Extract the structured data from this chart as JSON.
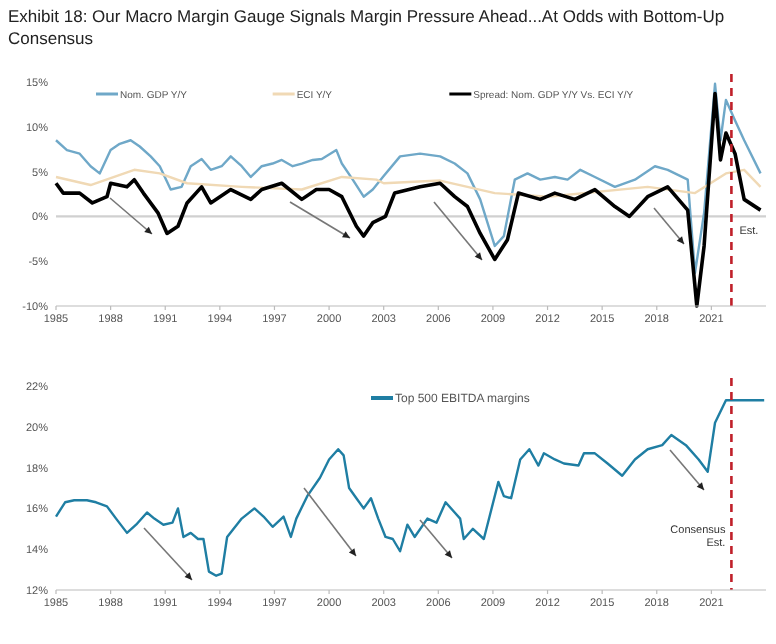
{
  "chart_data": [
    {
      "type": "line",
      "title": "Exhibit 18:  Our Macro Margin Gauge Signals Margin Pressure Ahead...At Odds with Bottom-Up Consensus",
      "xlim": [
        1985,
        2024
      ],
      "xticks": [
        1985,
        1988,
        1991,
        1994,
        1997,
        2000,
        2003,
        2006,
        2009,
        2012,
        2015,
        2018,
        2021
      ],
      "ylim": [
        -10,
        15
      ],
      "yticks": [
        {
          "value": -10,
          "label": "-10%"
        },
        {
          "value": -5,
          "label": "-5%"
        },
        {
          "value": 0,
          "label": "0%"
        },
        {
          "value": 5,
          "label": "5%"
        },
        {
          "value": 10,
          "label": "10%"
        },
        {
          "value": 15,
          "label": "15%"
        }
      ],
      "grid": false,
      "legend": "top",
      "marker": "none",
      "series": [
        {
          "name": "Nom. GDP Y/Y",
          "color": "#6fa8c8",
          "x": [
            1985,
            1985.6,
            1986.3,
            1986.9,
            1987.4,
            1988,
            1988.5,
            1989.1,
            1989.6,
            1990.2,
            1990.7,
            1991.3,
            1991.9,
            1992.4,
            1993,
            1993.5,
            1994.1,
            1994.6,
            1995.2,
            1995.7,
            1996.3,
            1996.9,
            1997.4,
            1998,
            1998.5,
            1999.1,
            1999.6,
            2000.4,
            2000.7,
            2001.3,
            2001.9,
            2002.4,
            2003,
            2003.9,
            2005,
            2006.1,
            2006.9,
            2007.6,
            2008.3,
            2009.1,
            2009.6,
            2010.2,
            2010.9,
            2011.6,
            2012.4,
            2013.1,
            2013.8,
            2014.6,
            2015.7,
            2016.8,
            2017.9,
            2018.6,
            2019.7,
            2020.1,
            2020.6,
            2021.2,
            2021.5,
            2021.8,
            2022.3,
            2022.8,
            2023.7
          ],
          "values": [
            8.5,
            7.4,
            7,
            5.6,
            4.8,
            7.4,
            8.1,
            8.5,
            7.8,
            6.7,
            5.6,
            3,
            3.3,
            5.6,
            6.4,
            5.2,
            5.6,
            6.7,
            5.6,
            4.4,
            5.6,
            5.9,
            6.3,
            5.6,
            5.9,
            6.3,
            6.4,
            7.4,
            5.9,
            4.1,
            2.2,
            3,
            4.5,
            6.7,
            7,
            6.7,
            5.9,
            4.8,
            1.9,
            -3.3,
            -2.2,
            4.1,
            4.8,
            4.1,
            4.4,
            4.1,
            5.2,
            4.4,
            3.3,
            4.1,
            5.6,
            5.2,
            4.1,
            -6.3,
            0.4,
            14.8,
            8.5,
            13,
            10.7,
            8.5,
            4.8
          ]
        },
        {
          "name": "ECI Y/Y",
          "color": "#f0d9b5",
          "x": [
            1985,
            1986.9,
            1989.3,
            1990.7,
            1992.2,
            1995.2,
            1998.5,
            2000.7,
            2002.6,
            2003,
            2006.1,
            2009.1,
            2012,
            2017.5,
            2020.1,
            2021.8,
            2022.8,
            2023.7
          ],
          "values": [
            4.4,
            3.5,
            5.2,
            4.8,
            3.7,
            3.3,
            3,
            4.4,
            4.1,
            3.7,
            4,
            2.6,
            2.2,
            3.3,
            2.6,
            4.8,
            5.2,
            3.3
          ]
        },
        {
          "name": "Spread: Nom. GDP Y/Y Vs. ECI Y/Y",
          "color": "#000000",
          "x": [
            1985,
            1985.4,
            1986.3,
            1987,
            1987.8,
            1988,
            1988.9,
            1989.3,
            1989.8,
            1990.6,
            1991.1,
            1991.7,
            1992.2,
            1993,
            1993.5,
            1994.6,
            1995.7,
            1996.3,
            1997.4,
            1998.5,
            1999.3,
            2000,
            2000.7,
            2001.5,
            2001.9,
            2002.4,
            2003.1,
            2003.6,
            2005,
            2006.1,
            2006.9,
            2007.6,
            2008.3,
            2009.1,
            2009.8,
            2010.4,
            2011.6,
            2012.4,
            2013.5,
            2014.6,
            2015.7,
            2016.5,
            2017.5,
            2018.6,
            2019.7,
            2020.2,
            2020.6,
            2021.2,
            2021.5,
            2021.8,
            2022.3,
            2022.8,
            2023.7
          ],
          "values": [
            3.7,
            2.6,
            2.6,
            1.5,
            2.2,
            3.7,
            3.3,
            4.1,
            2.6,
            0.4,
            -1.9,
            -1.1,
            1.5,
            3.3,
            1.5,
            3,
            1.9,
            3,
            3.7,
            1.9,
            3,
            3,
            2.2,
            -1.1,
            -2.2,
            -0.7,
            0,
            2.6,
            3.3,
            3.7,
            2.2,
            1.1,
            -1.9,
            -4.8,
            -2.6,
            2.6,
            1.9,
            2.6,
            1.9,
            3,
            1.1,
            0,
            2.2,
            3.3,
            0.7,
            -10,
            -3.3,
            13.7,
            6.3,
            9.3,
            7,
            1.9,
            0.7
          ]
        }
      ],
      "ref_lines": [
        {
          "axis": "y",
          "value": 0,
          "color": "#d0d0d0",
          "line_style": "solid"
        },
        {
          "axis": "x",
          "value": 2022.1,
          "label": "Est.",
          "color": "#c0202a",
          "line_style": "dashed"
        }
      ]
    },
    {
      "type": "line",
      "xlim": [
        1985,
        2024
      ],
      "xticks": [
        1985,
        1988,
        1991,
        1994,
        1997,
        2000,
        2003,
        2006,
        2009,
        2012,
        2015,
        2018,
        2021
      ],
      "ylim": [
        12,
        22
      ],
      "yticks": [
        {
          "value": 12,
          "label": "12%"
        },
        {
          "value": 14,
          "label": "14%"
        },
        {
          "value": 16,
          "label": "16%"
        },
        {
          "value": 18,
          "label": "18%"
        },
        {
          "value": 20,
          "label": "20%"
        },
        {
          "value": 22,
          "label": "22%"
        }
      ],
      "grid": false,
      "legend": "top",
      "marker": "none",
      "series": [
        {
          "name": "Top 500 EBITDA margins",
          "color": "#1f7ea3",
          "x": [
            1985,
            1985.5,
            1986,
            1986.7,
            1987.2,
            1987.8,
            1988.3,
            1988.9,
            1989.4,
            1990,
            1990.4,
            1990.9,
            1991.4,
            1991.7,
            1992,
            1992.4,
            1992.8,
            1993.1,
            1993.4,
            1993.8,
            1994.1,
            1994.4,
            1995.2,
            1995.9,
            1996.4,
            1996.9,
            1997.5,
            1997.9,
            1998.2,
            1998.8,
            1999.5,
            2000,
            2000.5,
            2000.8,
            2001.1,
            2001.5,
            2001.9,
            2002.3,
            2002.7,
            2003.1,
            2003.5,
            2003.9,
            2004.3,
            2004.7,
            2005.4,
            2005.9,
            2006.4,
            2006.9,
            2007.2,
            2007.4,
            2007.9,
            2008.5,
            2009.3,
            2009.6,
            2010,
            2010.5,
            2011,
            2011.5,
            2011.8,
            2012.4,
            2012.9,
            2013.7,
            2014,
            2014.6,
            2015.3,
            2016.1,
            2016.8,
            2017.5,
            2018.3,
            2018.8,
            2019.6,
            2020.3,
            2020.8,
            2021.2,
            2021.8,
            2022.3,
            2023.9
          ],
          "values": [
            15.6,
            16.3,
            16.4,
            16.4,
            16.3,
            16.1,
            15.5,
            14.8,
            15.2,
            15.8,
            15.5,
            15.2,
            15.3,
            16,
            14.6,
            14.8,
            14.5,
            14.5,
            12.9,
            12.7,
            12.8,
            14.6,
            15.5,
            16,
            15.6,
            15.1,
            15.6,
            14.6,
            15.5,
            16.6,
            17.5,
            18.4,
            18.9,
            18.6,
            17,
            16.5,
            16,
            16.5,
            15.5,
            14.6,
            14.5,
            13.9,
            15.2,
            14.6,
            15.5,
            15.3,
            16.3,
            15.8,
            15.5,
            14.5,
            15,
            14.5,
            17.3,
            16.6,
            16.5,
            18.4,
            18.9,
            18.1,
            18.7,
            18.4,
            18.2,
            18.1,
            18.7,
            18.7,
            18.2,
            17.6,
            18.4,
            18.9,
            19.1,
            19.6,
            19.1,
            18.4,
            17.8,
            20.2,
            21.3,
            21.3,
            21.3
          ]
        }
      ],
      "ref_lines": [
        {
          "axis": "x",
          "value": 2022.1,
          "label": "Consensus Est.",
          "color": "#c0202a",
          "line_style": "dashed"
        }
      ]
    }
  ]
}
